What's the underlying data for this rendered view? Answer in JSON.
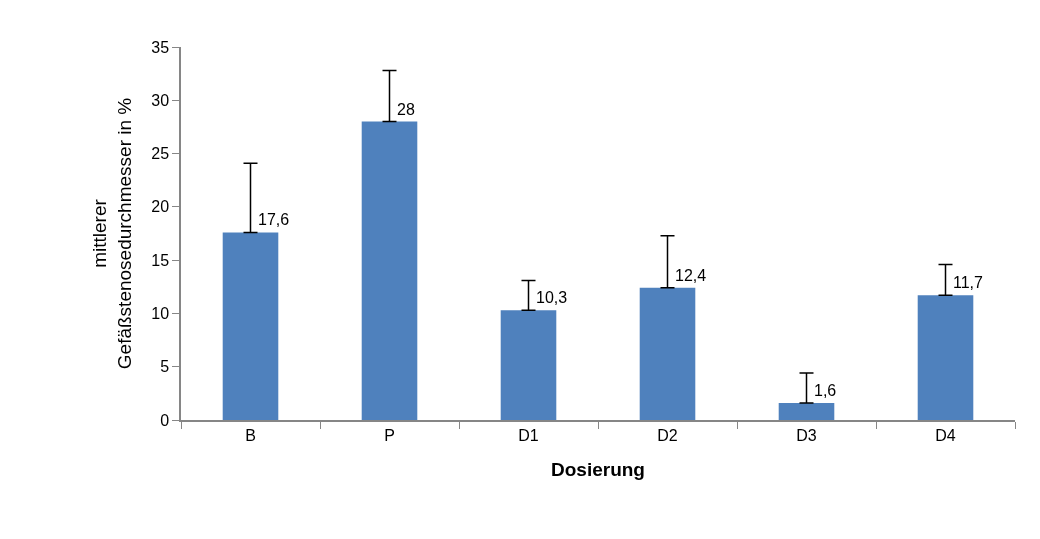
{
  "chart_data": {
    "type": "bar",
    "xlabel": "Dosierung",
    "ylabel": "mittlerer\nGefäßstenosedurchmesser in %",
    "categories": [
      "B",
      "P",
      "D1",
      "D2",
      "D3",
      "D4"
    ],
    "values": [
      17.6,
      28,
      10.3,
      12.4,
      1.6,
      11.7
    ],
    "errors": [
      [
        17.6,
        24.1
      ],
      [
        28,
        32.8
      ],
      [
        10.3,
        13.1
      ],
      [
        12.4,
        17.3
      ],
      [
        1.6,
        4.4
      ],
      [
        11.7,
        14.6
      ]
    ],
    "value_labels": [
      "17,6",
      "28",
      "10,3",
      "12,4",
      "1,6",
      "11,7"
    ],
    "color": "#4f81bd",
    "ylim": [
      0,
      35
    ],
    "yticks": [
      0,
      5,
      10,
      15,
      20,
      25,
      30,
      35
    ]
  }
}
